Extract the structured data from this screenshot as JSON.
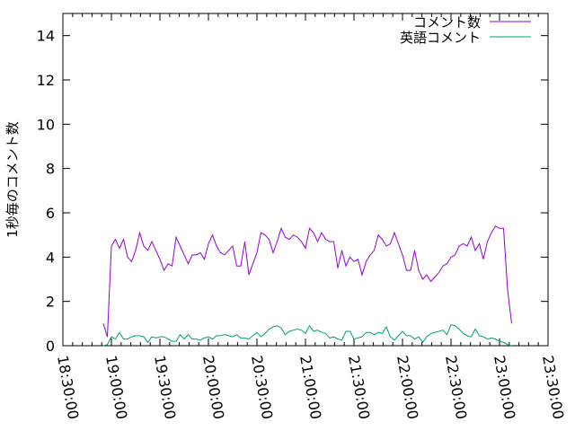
{
  "chart_data": {
    "type": "line",
    "title": "",
    "xlabel": "",
    "ylabel": "1秒毎のコメント数",
    "xlim": [
      "18:30:00",
      "23:30:00"
    ],
    "ylim": [
      0,
      15
    ],
    "x_ticks": [
      "18:30:00",
      "19:00:00",
      "19:30:00",
      "20:00:00",
      "20:30:00",
      "21:00:00",
      "21:30:00",
      "22:00:00",
      "22:30:00",
      "23:00:00",
      "23:30:00"
    ],
    "y_ticks": [
      0,
      2,
      4,
      6,
      8,
      10,
      12,
      14
    ],
    "grid": false,
    "legend_position": "top-right",
    "x": [
      "18:55:00",
      "18:57:30",
      "19:00:00",
      "19:02:30",
      "19:05:00",
      "19:07:30",
      "19:10:00",
      "19:12:30",
      "19:15:00",
      "19:17:30",
      "19:20:00",
      "19:22:30",
      "19:25:00",
      "19:27:30",
      "19:30:00",
      "19:32:30",
      "19:35:00",
      "19:37:30",
      "19:40:00",
      "19:42:30",
      "19:45:00",
      "19:47:30",
      "19:50:00",
      "19:52:30",
      "19:55:00",
      "19:57:30",
      "20:00:00",
      "20:02:30",
      "20:05:00",
      "20:07:30",
      "20:10:00",
      "20:12:30",
      "20:15:00",
      "20:17:30",
      "20:20:00",
      "20:22:30",
      "20:25:00",
      "20:27:30",
      "20:30:00",
      "20:32:30",
      "20:35:00",
      "20:37:30",
      "20:40:00",
      "20:42:30",
      "20:45:00",
      "20:47:30",
      "20:50:00",
      "20:52:30",
      "20:55:00",
      "20:57:30",
      "21:00:00",
      "21:02:30",
      "21:05:00",
      "21:07:30",
      "21:10:00",
      "21:12:30",
      "21:15:00",
      "21:17:30",
      "21:20:00",
      "21:22:30",
      "21:25:00",
      "21:27:30",
      "21:30:00",
      "21:32:30",
      "21:35:00",
      "21:37:30",
      "21:40:00",
      "21:42:30",
      "21:45:00",
      "21:47:30",
      "21:50:00",
      "21:52:30",
      "21:55:00",
      "21:57:30",
      "22:00:00",
      "22:02:30",
      "22:05:00",
      "22:07:30",
      "22:10:00",
      "22:12:30",
      "22:15:00",
      "22:17:30",
      "22:20:00",
      "22:22:30",
      "22:25:00",
      "22:27:30",
      "22:30:00",
      "22:32:30",
      "22:35:00",
      "22:37:30",
      "22:40:00",
      "22:42:30",
      "22:45:00",
      "22:47:30",
      "22:50:00",
      "22:52:30",
      "22:55:00",
      "22:57:30",
      "23:00:00",
      "23:02:30",
      "23:05:00",
      "23:07:30"
    ],
    "series": [
      {
        "name": "コメント数",
        "color": "#9400d3",
        "values": [
          1.0,
          0.4,
          4.5,
          4.8,
          4.4,
          4.8,
          4.0,
          3.8,
          4.3,
          5.1,
          4.5,
          4.3,
          4.7,
          4.3,
          3.9,
          3.4,
          3.7,
          3.6,
          4.9,
          4.5,
          4.1,
          3.7,
          4.1,
          4.1,
          4.2,
          3.9,
          4.6,
          5.0,
          4.5,
          4.2,
          4.1,
          4.3,
          4.5,
          3.6,
          3.6,
          4.7,
          3.2,
          3.7,
          4.2,
          5.1,
          5.0,
          4.8,
          4.2,
          4.7,
          5.3,
          4.9,
          4.8,
          5.0,
          4.9,
          4.7,
          4.4,
          5.3,
          5.1,
          4.7,
          5.1,
          4.8,
          4.7,
          4.7,
          3.5,
          4.3,
          3.6,
          4.0,
          3.8,
          3.9,
          3.2,
          3.8,
          4.1,
          4.3,
          5.0,
          4.8,
          4.5,
          4.6,
          5.1,
          4.6,
          4.1,
          3.4,
          3.4,
          4.3,
          3.4,
          3.0,
          3.2,
          2.9,
          3.1,
          3.3,
          3.6,
          3.7,
          4.0,
          4.1,
          4.5,
          4.6,
          4.5,
          4.9,
          4.3,
          4.6,
          3.9,
          4.7,
          5.1,
          5.4,
          5.3,
          5.3,
          2.5,
          1.0
        ]
      },
      {
        "name": "英語コメント",
        "color": "#009e73",
        "values": [
          0,
          0.05,
          0.4,
          0.3,
          0.6,
          0.3,
          0.3,
          0.4,
          0.45,
          0.45,
          0.4,
          0.15,
          0.4,
          0.35,
          0.4,
          0.4,
          0.3,
          0.2,
          0.2,
          0.5,
          0.3,
          0.5,
          0.3,
          0.3,
          0.25,
          0.35,
          0.4,
          0.3,
          0.45,
          0.45,
          0.5,
          0.45,
          0.4,
          0.5,
          0.35,
          0.35,
          0.3,
          0.45,
          0.6,
          0.4,
          0.55,
          0.75,
          0.85,
          0.9,
          0.8,
          0.5,
          0.65,
          0.7,
          0.75,
          0.7,
          0.55,
          0.9,
          0.65,
          0.7,
          0.6,
          0.55,
          0.35,
          0.4,
          0.3,
          0.25,
          0.65,
          0.65,
          0.3,
          0.35,
          0.4,
          0.6,
          0.6,
          0.5,
          0.6,
          0.55,
          0.85,
          0.4,
          0.25,
          0.45,
          0.65,
          0.45,
          0.45,
          0.3,
          0.4,
          0.15,
          0.4,
          0.55,
          0.6,
          0.65,
          0.7,
          0.5,
          0.95,
          0.9,
          0.75,
          0.55,
          0.45,
          0.4,
          0.75,
          0.45,
          0.4,
          0.3,
          0.35,
          0.3,
          0.2,
          0.15,
          0.05,
          0.0
        ]
      }
    ]
  }
}
